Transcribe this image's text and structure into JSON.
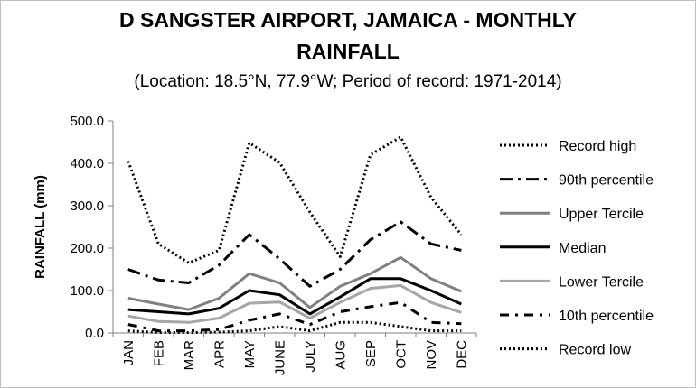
{
  "chart_data": {
    "type": "line",
    "title_line1": "D SANGSTER AIRPORT, JAMAICA - MONTHLY",
    "title_line2": "RAINFALL",
    "subtitle": "(Location: 18.5°N, 77.9°W; Period of record: 1971-2014)",
    "ylabel": "RAINFALL (mm)",
    "xlabel": "",
    "ylim": [
      0,
      500
    ],
    "yticks": [
      "0.0",
      "100.0",
      "200.0",
      "300.0",
      "400.0",
      "500.0"
    ],
    "categories": [
      "JAN",
      "FEB",
      "MAR",
      "APR",
      "MAY",
      "JUNE",
      "JULY",
      "AUG",
      "SEP",
      "OCT",
      "NOV",
      "DEC"
    ],
    "legend_position": "right",
    "grid": false,
    "series": [
      {
        "name": "Record high",
        "color": "#000000",
        "style": "dotted",
        "values": [
          405,
          210,
          165,
          195,
          448,
          402,
          285,
          180,
          420,
          462,
          320,
          232
        ]
      },
      {
        "name": "90th percentile",
        "color": "#000000",
        "style": "dashdot-long",
        "values": [
          150,
          125,
          118,
          160,
          232,
          175,
          110,
          150,
          220,
          262,
          210,
          195
        ]
      },
      {
        "name": "Upper Tercile",
        "color": "#808080",
        "style": "solid",
        "values": [
          82,
          68,
          55,
          82,
          140,
          118,
          60,
          110,
          140,
          178,
          128,
          98
        ]
      },
      {
        "name": "Median",
        "color": "#000000",
        "style": "solid",
        "values": [
          55,
          50,
          45,
          58,
          100,
          90,
          45,
          85,
          128,
          128,
          100,
          68
        ]
      },
      {
        "name": "Lower Tercile",
        "color": "#a6a6a6",
        "style": "solid",
        "values": [
          40,
          27,
          25,
          35,
          70,
          73,
          35,
          72,
          105,
          112,
          72,
          48
        ]
      },
      {
        "name": "10th percentile",
        "color": "#000000",
        "style": "dashdot-short",
        "values": [
          20,
          5,
          5,
          8,
          30,
          45,
          20,
          50,
          62,
          72,
          25,
          22
        ]
      },
      {
        "name": "Record low",
        "color": "#000000",
        "style": "dotted",
        "values": [
          5,
          1,
          1,
          2,
          5,
          15,
          5,
          25,
          25,
          15,
          5,
          5
        ]
      }
    ]
  }
}
